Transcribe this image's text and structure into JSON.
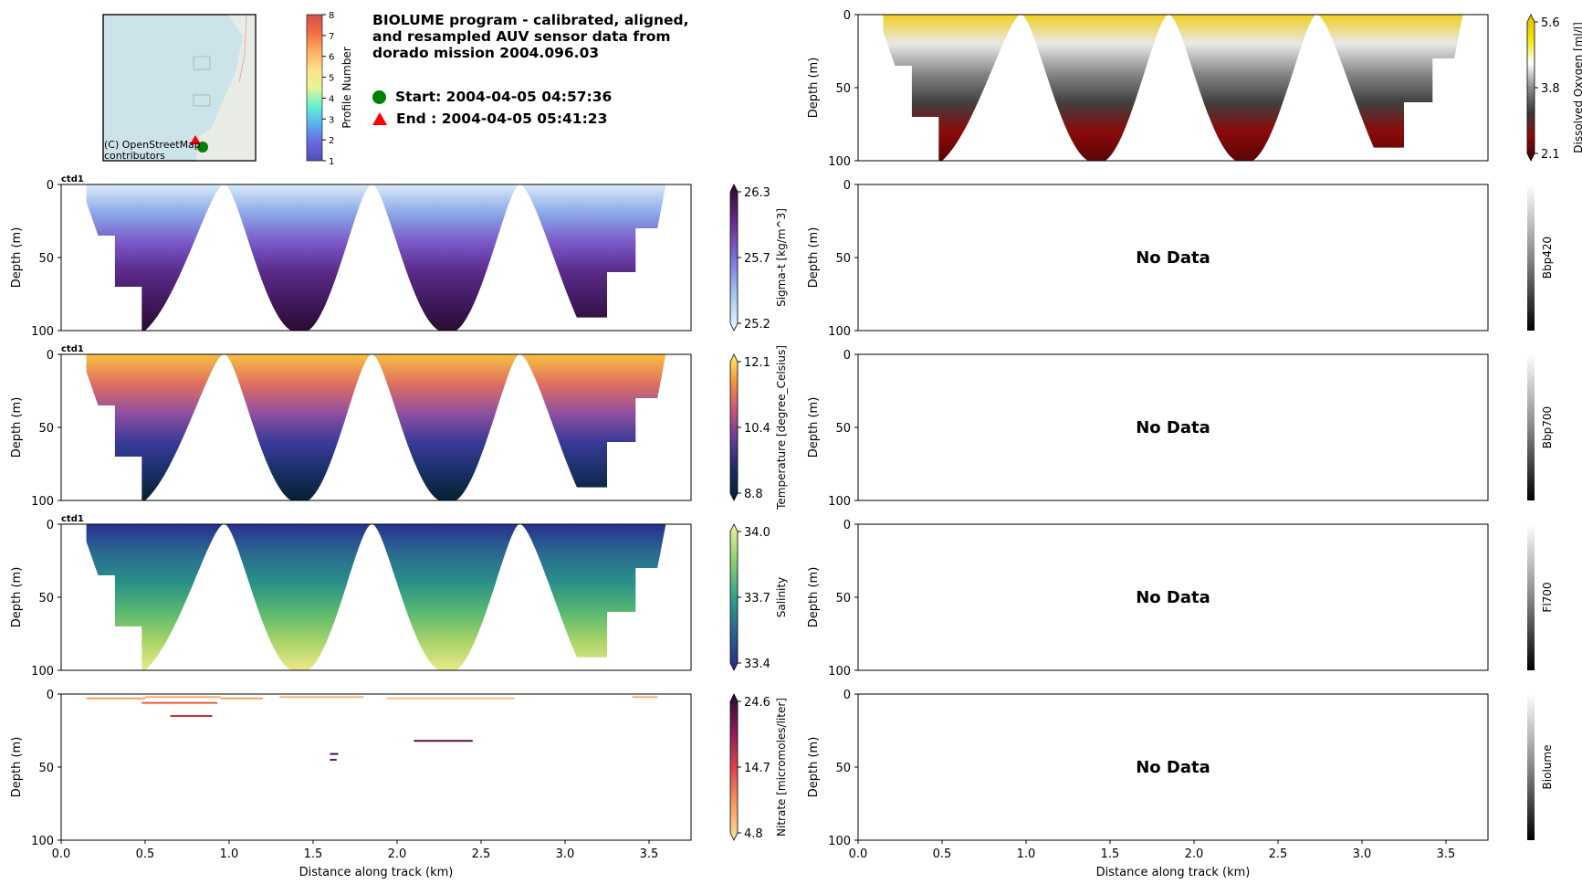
{
  "title": [
    "BIOLUME program - calibrated, aligned,",
    "and resampled AUV sensor data from",
    "dorado mission 2004.096.03"
  ],
  "legend": {
    "start": "Start: 2004-04-05 04:57:36",
    "end": "End  : 2004-04-05 05:41:23",
    "start_color": "#008000",
    "end_color": "#ff0000"
  },
  "map": {
    "attribution": [
      "(C) OpenStreetMap",
      "contributors"
    ],
    "colorbar_label": "Profile Number",
    "colorbar_ticks": [
      "1",
      "2",
      "3",
      "4",
      "5",
      "6",
      "7",
      "8"
    ]
  },
  "chart_data": {
    "type": "heatmap",
    "xlabel": "Distance along track (km)",
    "ylabel": "Depth (m)",
    "xlim": [
      0,
      3.75
    ],
    "ylim": [
      100,
      0
    ],
    "xticks": [
      "0.0",
      "0.5",
      "1.0",
      "1.5",
      "2.0",
      "2.5",
      "3.0",
      "3.5"
    ],
    "yticks": [
      "0",
      "50",
      "100"
    ],
    "no_data_text": "No Data",
    "panels": [
      {
        "id": "oxygen",
        "column": "right",
        "row": 0,
        "label": "Dissolved Oxygen [ml/l]",
        "ticks": [
          "5.6",
          "3.8",
          "2.1"
        ],
        "has_data": true,
        "colors": [
          "#f0d020",
          "#e8e8e8",
          "#888888",
          "#404040",
          "#8b0a0a",
          "#5a0505"
        ],
        "cbar_colors": [
          "#e6b800",
          "#f2e600",
          "#ffffff",
          "#8a8a8a",
          "#3a3a3a",
          "#8b0a0a",
          "#3a0000"
        ]
      },
      {
        "id": "sigma_t",
        "column": "left",
        "row": 1,
        "source": "ctd1",
        "label": "Sigma-t [kg/m^3]",
        "ticks": [
          "26.3",
          "25.7",
          "25.2"
        ],
        "has_data": true,
        "colors": [
          "#d8ecf8",
          "#8aa6e8",
          "#7a58c8",
          "#5a2a88",
          "#401a60",
          "#2a0c30"
        ],
        "cbar_colors": [
          "#2a0a2a",
          "#6a2a8a",
          "#7a70d8",
          "#a0c8f0",
          "#f0f8fc"
        ]
      },
      {
        "id": "temperature",
        "column": "left",
        "row": 2,
        "source": "ctd1",
        "label": "Temperature [degree_Celsius]",
        "ticks": [
          "12.1",
          "10.4",
          "8.8"
        ],
        "has_data": true,
        "colors": [
          "#f8c040",
          "#e07060",
          "#9050a0",
          "#3a3a98",
          "#1a3068",
          "#082030"
        ],
        "cbar_colors": [
          "#f8f060",
          "#f49040",
          "#c05080",
          "#5a3a9a",
          "#1a2a60",
          "#03202a"
        ]
      },
      {
        "id": "salinity",
        "column": "left",
        "row": 3,
        "source": "ctd1",
        "label": "Salinity",
        "ticks": [
          "34.0",
          "33.7",
          "33.4"
        ],
        "has_data": true,
        "colors": [
          "#283090",
          "#2a6a90",
          "#2a9088",
          "#58b870",
          "#a8d468",
          "#ece888"
        ],
        "cbar_colors": [
          "#f0f0a0",
          "#90d070",
          "#30a08a",
          "#2a6090",
          "#282a80"
        ]
      },
      {
        "id": "nitrate",
        "column": "left",
        "row": 4,
        "label": "Nitrate [micromoles/liter]",
        "ticks": [
          "24.6",
          "14.7",
          "4.8"
        ],
        "has_data": true,
        "sparse": true,
        "cbar_colors": [
          "#2a0a30",
          "#8a1a5a",
          "#e04050",
          "#f89a60",
          "#fce0a0"
        ]
      },
      {
        "id": "bbp420",
        "column": "right",
        "row": 1,
        "label": "Bbp420",
        "ticks": [],
        "has_data": false
      },
      {
        "id": "bbp700",
        "column": "right",
        "row": 2,
        "label": "Bbp700",
        "ticks": [],
        "has_data": false
      },
      {
        "id": "fl700",
        "column": "right",
        "row": 3,
        "label": "Fl700",
        "ticks": [],
        "has_data": false
      },
      {
        "id": "biolume",
        "column": "right",
        "row": 4,
        "label": "Biolume",
        "ticks": [],
        "has_data": false
      }
    ]
  }
}
